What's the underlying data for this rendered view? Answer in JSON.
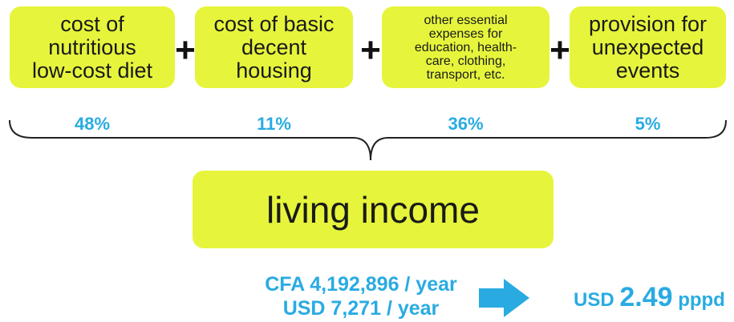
{
  "components": [
    {
      "lines": [
        "cost of",
        "nutritious",
        "low-cost diet"
      ],
      "share": "48%"
    },
    {
      "lines": [
        "cost of basic",
        "decent",
        "housing"
      ],
      "share": "11%"
    },
    {
      "lines": [
        "other essential",
        "expenses for",
        "education, health-",
        "care, clothing,",
        "transport, etc."
      ],
      "share": "36%"
    },
    {
      "lines": [
        "provision for",
        "unexpected",
        "events"
      ],
      "share": "5%"
    }
  ],
  "operator": "+",
  "result": {
    "label": "living income"
  },
  "amounts": [
    "CFA 4,192,896 / year",
    "USD 7,271 / year"
  ],
  "per_day": {
    "prefix": "USD",
    "value": "2.49",
    "unit": "pppd"
  }
}
